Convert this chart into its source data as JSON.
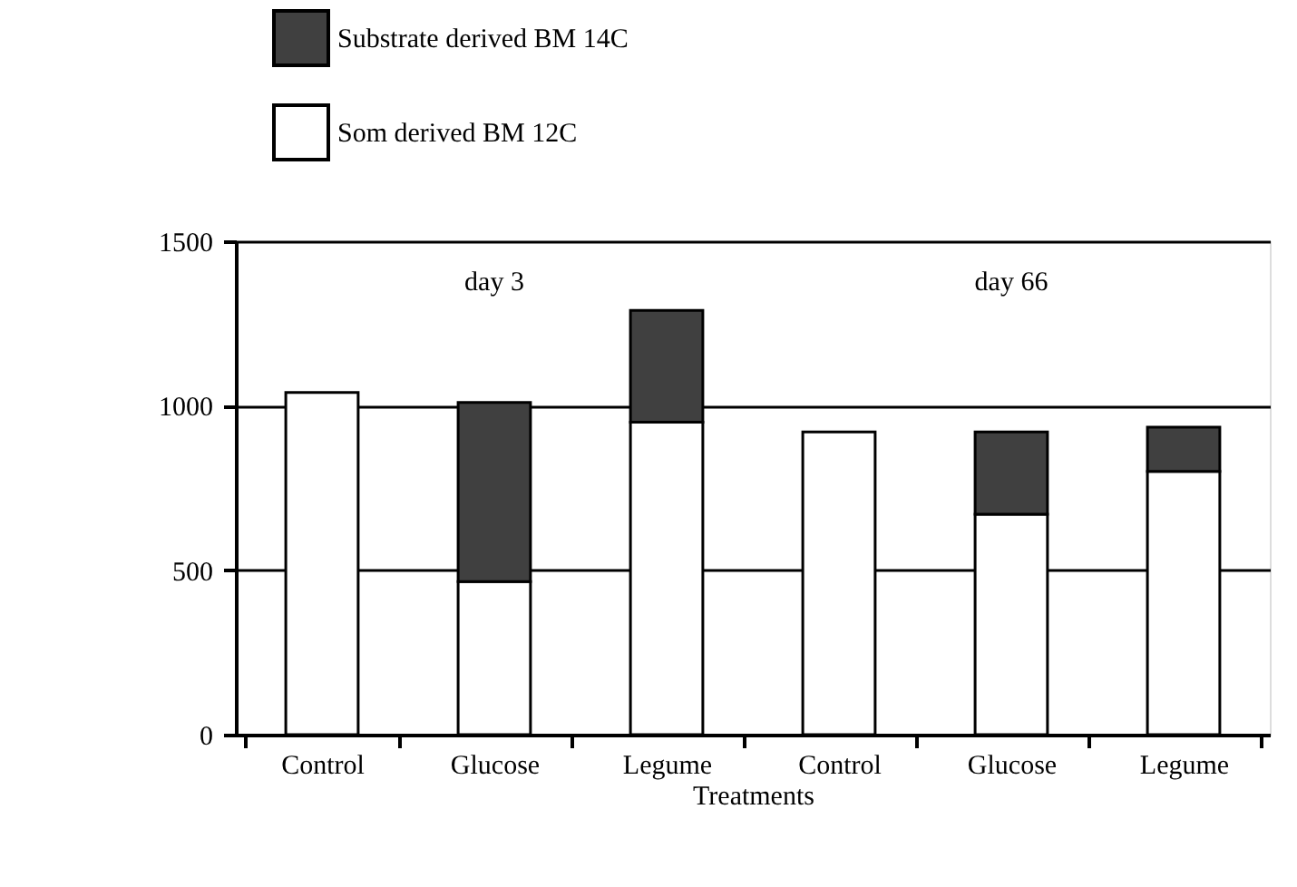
{
  "chart_data": {
    "type": "bar",
    "stacked": true,
    "xlabel": "Treatments",
    "categories": [
      "Control",
      "Glucose",
      "Legume",
      "Control",
      "Glucose",
      "Legume"
    ],
    "series": [
      {
        "name": "Som derived BM 12C",
        "color": "#ffffff",
        "values": [
          1040,
          465,
          950,
          920,
          670,
          800
        ]
      },
      {
        "name": "Substrate derived BM 14C",
        "color": "#404040",
        "values": [
          null,
          545,
          340,
          null,
          250,
          135
        ]
      }
    ],
    "ylim": [
      0,
      1500
    ],
    "yticks": [
      0,
      500,
      1000,
      1500
    ],
    "grid": "y",
    "legend": "top left",
    "annotations": [
      "day 3",
      "day 66"
    ]
  }
}
